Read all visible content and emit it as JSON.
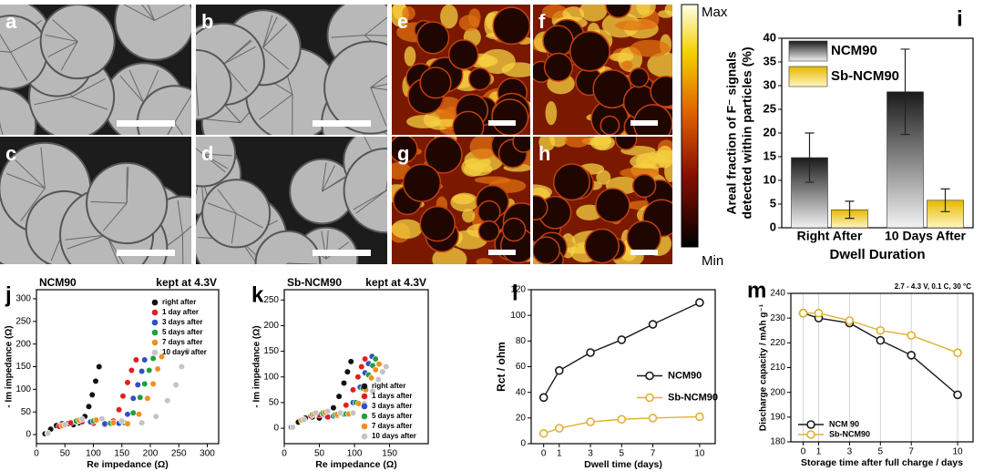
{
  "images": {
    "labels": [
      "a",
      "b",
      "c",
      "d",
      "e",
      "f",
      "g",
      "h"
    ],
    "colorbar_max": "Max",
    "colorbar_min": "Min"
  },
  "chart_data": [
    {
      "type": "bar",
      "panel": "i",
      "y_label": [
        "Areal fraction of F⁻ signals",
        "detected within particles (%)"
      ],
      "x_label": "Dwell Duration",
      "categories": [
        "Right After",
        "10 Days After"
      ],
      "series": [
        {
          "name": "NCM90",
          "color": "#1a1a1a",
          "values": [
            14.8,
            28.7
          ],
          "errors": [
            5.2,
            9.0
          ]
        },
        {
          "name": "Sb-NCM90",
          "color": "#e6b800",
          "values": [
            3.8,
            5.8
          ],
          "errors": [
            1.8,
            2.4
          ]
        }
      ],
      "ylim": [
        0,
        40
      ],
      "yticks": [
        0,
        5,
        10,
        15,
        20,
        25,
        30,
        35,
        40
      ],
      "legend": "upper left"
    },
    {
      "type": "scatter",
      "panel": "j",
      "title": "NCM90",
      "annotation": "kept at 4.3V",
      "x_label": "Re impedance (Ω)",
      "y_label": "- Im impedance (Ω)",
      "series": [
        {
          "name": "right after",
          "color": "#111111",
          "x": [
            15,
            25,
            35,
            45,
            55,
            65,
            75,
            85,
            92,
            98,
            104,
            110
          ],
          "values": [
            2,
            12,
            20,
            24,
            24,
            22,
            26,
            40,
            62,
            88,
            118,
            150
          ]
        },
        {
          "name": "1 day after",
          "color": "#e02020",
          "x": [
            20,
            40,
            60,
            80,
            100,
            120,
            135,
            145,
            152,
            160,
            167,
            175
          ],
          "values": [
            3,
            18,
            26,
            28,
            25,
            22,
            30,
            55,
            85,
            115,
            142,
            165
          ]
        },
        {
          "name": "3 days after",
          "color": "#3050c0",
          "x": [
            20,
            45,
            70,
            95,
            120,
            145,
            160,
            170,
            178,
            185,
            190
          ],
          "values": [
            3,
            20,
            28,
            28,
            24,
            25,
            45,
            80,
            110,
            140,
            165
          ]
        },
        {
          "name": "5 days after",
          "color": "#20a040",
          "x": [
            20,
            45,
            70,
            100,
            130,
            155,
            170,
            182,
            190,
            198,
            205
          ],
          "values": [
            3,
            20,
            30,
            30,
            25,
            26,
            48,
            82,
            112,
            142,
            168
          ]
        },
        {
          "name": "7 days after",
          "color": "#f09020",
          "x": [
            20,
            45,
            75,
            105,
            135,
            160,
            180,
            195,
            205,
            213,
            220
          ],
          "values": [
            3,
            20,
            32,
            32,
            26,
            24,
            45,
            80,
            112,
            145,
            172
          ]
        },
        {
          "name": "10 days after",
          "color": "#c4c4c4",
          "x": [
            20,
            50,
            80,
            115,
            150,
            185,
            210,
            230,
            245,
            255,
            265
          ],
          "values": [
            3,
            22,
            34,
            35,
            30,
            26,
            40,
            75,
            110,
            150,
            185
          ]
        }
      ],
      "xlim": [
        0,
        320
      ],
      "xticks": [
        0,
        50,
        100,
        150,
        200,
        250,
        300
      ],
      "ylim": [
        -20,
        320
      ],
      "yticks": [
        0,
        50,
        100,
        150,
        200,
        250,
        300
      ],
      "legend": "upper right"
    },
    {
      "type": "scatter",
      "panel": "k",
      "title": "Sb-NCM90",
      "annotation": "kept at 4.3V",
      "x_label": "Re impedance (Ω)",
      "y_label": "- Im impedance (Ω)",
      "series": [
        {
          "name": "right after",
          "color": "#111111",
          "x": [
            10,
            20,
            30,
            40,
            50,
            60,
            70,
            78,
            85,
            90,
            95
          ],
          "values": [
            2,
            12,
            20,
            22,
            20,
            24,
            40,
            62,
            88,
            110,
            130
          ]
        },
        {
          "name": "1 days after",
          "color": "#e02020",
          "x": [
            12,
            25,
            38,
            50,
            62,
            75,
            88,
            98,
            105,
            110,
            115
          ],
          "values": [
            2,
            14,
            24,
            26,
            22,
            25,
            45,
            75,
            100,
            120,
            135
          ]
        },
        {
          "name": "3 days after",
          "color": "#3050c0",
          "x": [
            12,
            25,
            40,
            55,
            70,
            85,
            98,
            108,
            115,
            120,
            125
          ],
          "values": [
            2,
            15,
            26,
            28,
            24,
            28,
            50,
            80,
            108,
            126,
            140
          ]
        },
        {
          "name": "5 days after",
          "color": "#20a040",
          "x": [
            12,
            25,
            40,
            55,
            72,
            88,
            102,
            112,
            120,
            126,
            130
          ],
          "values": [
            2,
            15,
            27,
            30,
            26,
            28,
            50,
            78,
            104,
            122,
            135
          ]
        },
        {
          "name": "7 days after",
          "color": "#f09020",
          "x": [
            12,
            25,
            42,
            58,
            75,
            92,
            106,
            116,
            124,
            130,
            135
          ],
          "values": [
            2,
            16,
            28,
            31,
            27,
            28,
            48,
            75,
            98,
            114,
            125
          ]
        },
        {
          "name": "10 days after",
          "color": "#c4c4c4",
          "x": [
            12,
            28,
            45,
            62,
            80,
            98,
            114,
            126,
            134,
            140,
            145
          ],
          "values": [
            2,
            17,
            30,
            33,
            30,
            30,
            48,
            72,
            95,
            110,
            120
          ]
        }
      ],
      "xlim": [
        0,
        205
      ],
      "xticks": [
        0,
        50,
        100,
        150
      ],
      "ylim": [
        -30,
        270
      ],
      "yticks": [
        0,
        50,
        100,
        150,
        200,
        250
      ],
      "legend": "lower right"
    },
    {
      "type": "line",
      "panel": "l",
      "x_label": "Dwell time (days)",
      "y_label": "Rct / ohm",
      "x": [
        0,
        1,
        3,
        5,
        7,
        10
      ],
      "series": [
        {
          "name": "NCM90",
          "color": "#1a1a1a",
          "values": [
            36,
            57,
            71,
            81,
            93,
            110
          ]
        },
        {
          "name": "Sb-NCM90",
          "color": "#e0b030",
          "values": [
            8,
            12,
            17,
            19,
            20,
            21
          ]
        }
      ],
      "xlim": [
        -0.8,
        11
      ],
      "xticks": [
        0,
        1,
        3,
        5,
        7,
        10
      ],
      "ylim": [
        0,
        120
      ],
      "yticks": [
        0,
        20,
        40,
        60,
        80,
        100,
        120
      ],
      "legend": "center right"
    },
    {
      "type": "line",
      "panel": "m",
      "annotation": "2.7 - 4.3 V,  0.1 C, 30 °C",
      "x_label": "Storage time after full charge / days",
      "y_label": "Discharge capacity / mAh g⁻¹",
      "x": [
        0,
        1,
        3,
        5,
        7,
        10
      ],
      "series": [
        {
          "name": "NCM 90",
          "color": "#1a1a1a",
          "values": [
            232,
            230,
            228,
            221,
            215,
            199
          ]
        },
        {
          "name": "Sb-NCM90",
          "color": "#e0b030",
          "values": [
            232,
            232,
            229,
            225,
            223,
            216
          ]
        }
      ],
      "xlim": [
        -0.8,
        11
      ],
      "xticks": [
        0,
        1,
        3,
        5,
        7,
        10
      ],
      "ylim": [
        180,
        240
      ],
      "yticks": [
        180,
        190,
        200,
        210,
        220,
        230,
        240
      ],
      "grid": true,
      "legend": "lower left"
    }
  ]
}
